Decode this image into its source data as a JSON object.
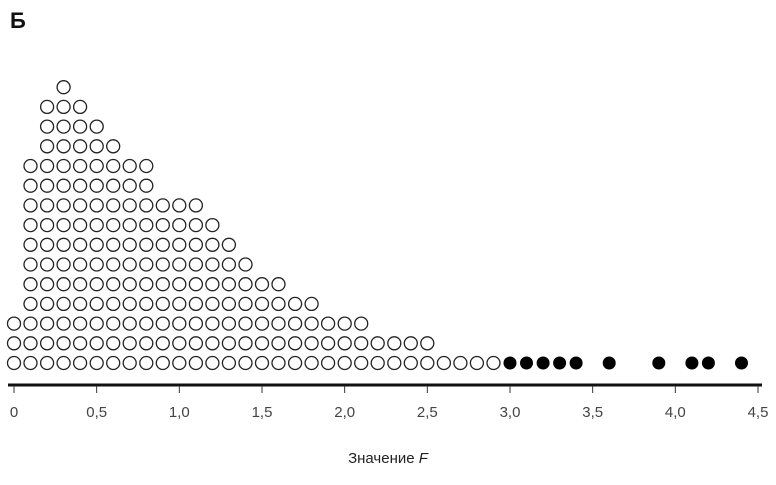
{
  "panel_label": "Б",
  "xlabel_prefix": "Значение",
  "xlabel_var": "F",
  "chart_data": {
    "type": "scatter",
    "subtype": "dot-plot",
    "title": "",
    "xlabel": "Значение F",
    "ylabel": "",
    "xlim": [
      0,
      4.5
    ],
    "x_ticks": [
      0,
      0.5,
      1.0,
      1.5,
      2.0,
      2.5,
      3.0,
      3.5,
      4.0,
      4.5
    ],
    "x_tick_labels": [
      "0",
      "0,5",
      "1,0",
      "1,5",
      "2,0",
      "2,5",
      "3,0",
      "3,5",
      "4,0",
      "4,5"
    ],
    "bin_width": 0.1,
    "grid": false,
    "legend": "none",
    "series": [
      {
        "style": "open",
        "color": "#222222",
        "bins": [
          0.0,
          0.1,
          0.2,
          0.3,
          0.4,
          0.5,
          0.6,
          0.7,
          0.8,
          0.9,
          1.0,
          1.1,
          1.2,
          1.3,
          1.4,
          1.5,
          1.6,
          1.7,
          1.8,
          1.9,
          2.0,
          2.1,
          2.2,
          2.3,
          2.4,
          2.5,
          2.6,
          2.7,
          2.8,
          2.9
        ],
        "counts": [
          3,
          11,
          14,
          15,
          14,
          13,
          12,
          11,
          11,
          9,
          9,
          9,
          8,
          7,
          6,
          5,
          5,
          4,
          4,
          3,
          3,
          3,
          2,
          2,
          2,
          2,
          1,
          1,
          1,
          1
        ]
      },
      {
        "style": "filled",
        "color": "#000000",
        "x": [
          3.0,
          3.1,
          3.2,
          3.3,
          3.4,
          3.6,
          3.9,
          4.1,
          4.2,
          4.4
        ]
      }
    ]
  }
}
